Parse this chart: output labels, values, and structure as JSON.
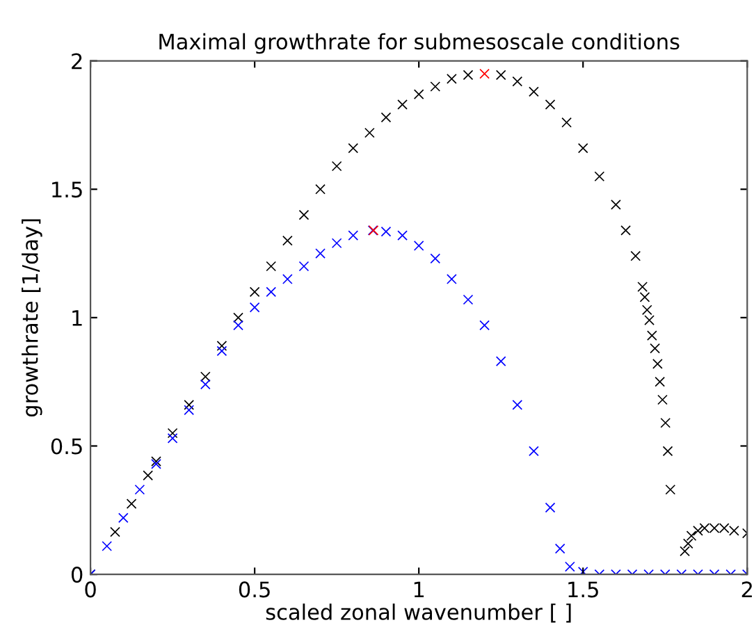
{
  "chart_data": {
    "type": "scatter",
    "title": "Maximal growthrate for submesoscale conditions",
    "xlabel": "scaled zonal wavenumber [ ]",
    "ylabel": "growthrate [1/day]",
    "xlim": [
      0,
      2
    ],
    "ylim": [
      0,
      2
    ],
    "xticks": [
      0,
      0.5,
      1,
      1.5,
      2
    ],
    "yticks": [
      0,
      0.5,
      1,
      1.5,
      2
    ],
    "grid": false,
    "marker": "cross",
    "series": [
      {
        "color": "#000000",
        "x": [
          0,
          0.075,
          0.125,
          0.175,
          0.2,
          0.25,
          0.3,
          0.35,
          0.4,
          0.45,
          0.5,
          0.55,
          0.6,
          0.65,
          0.7,
          0.75,
          0.8,
          0.85,
          0.9,
          0.95,
          1.0,
          1.05,
          1.1,
          1.15,
          1.25,
          1.3,
          1.35,
          1.4,
          1.45,
          1.5,
          1.55,
          1.6,
          1.63,
          1.66,
          1.681,
          1.688,
          1.695,
          1.702,
          1.71,
          1.719,
          1.727,
          1.734,
          1.742,
          1.751,
          1.758,
          1.766,
          1.81,
          1.82,
          1.83,
          1.85,
          1.87,
          1.9,
          1.93,
          1.96,
          2.0
        ],
        "values": [
          0,
          0.165,
          0.275,
          0.385,
          0.44,
          0.55,
          0.66,
          0.77,
          0.89,
          1.0,
          1.1,
          1.2,
          1.3,
          1.4,
          1.5,
          1.59,
          1.66,
          1.72,
          1.78,
          1.83,
          1.87,
          1.9,
          1.93,
          1.945,
          1.945,
          1.92,
          1.88,
          1.83,
          1.76,
          1.66,
          1.55,
          1.44,
          1.34,
          1.24,
          1.12,
          1.08,
          1.03,
          0.99,
          0.93,
          0.88,
          0.82,
          0.75,
          0.68,
          0.59,
          0.48,
          0.33,
          0.09,
          0.12,
          0.15,
          0.17,
          0.18,
          0.18,
          0.18,
          0.17,
          0.16
        ]
      },
      {
        "color": "#0000ff",
        "x": [
          0,
          0.05,
          0.1,
          0.15,
          0.2,
          0.25,
          0.3,
          0.35,
          0.4,
          0.45,
          0.5,
          0.55,
          0.6,
          0.65,
          0.7,
          0.75,
          0.8,
          0.86,
          0.9,
          0.95,
          1.0,
          1.05,
          1.1,
          1.15,
          1.2,
          1.25,
          1.3,
          1.35,
          1.4,
          1.43,
          1.46,
          1.5,
          1.55,
          1.6,
          1.65,
          1.7,
          1.75,
          1.8,
          1.85,
          1.9,
          1.95,
          2.0
        ],
        "values": [
          0,
          0.11,
          0.22,
          0.33,
          0.43,
          0.53,
          0.64,
          0.74,
          0.87,
          0.97,
          1.04,
          1.1,
          1.15,
          1.2,
          1.25,
          1.29,
          1.32,
          1.34,
          1.335,
          1.32,
          1.28,
          1.23,
          1.15,
          1.07,
          0.97,
          0.83,
          0.66,
          0.48,
          0.26,
          0.1,
          0.03,
          0.01,
          0,
          0,
          0,
          0,
          0,
          0,
          0,
          0,
          0,
          0
        ]
      },
      {
        "color": "#ff0000",
        "x": [
          0.862,
          1.2
        ],
        "values": [
          1.34,
          1.95
        ]
      }
    ]
  }
}
